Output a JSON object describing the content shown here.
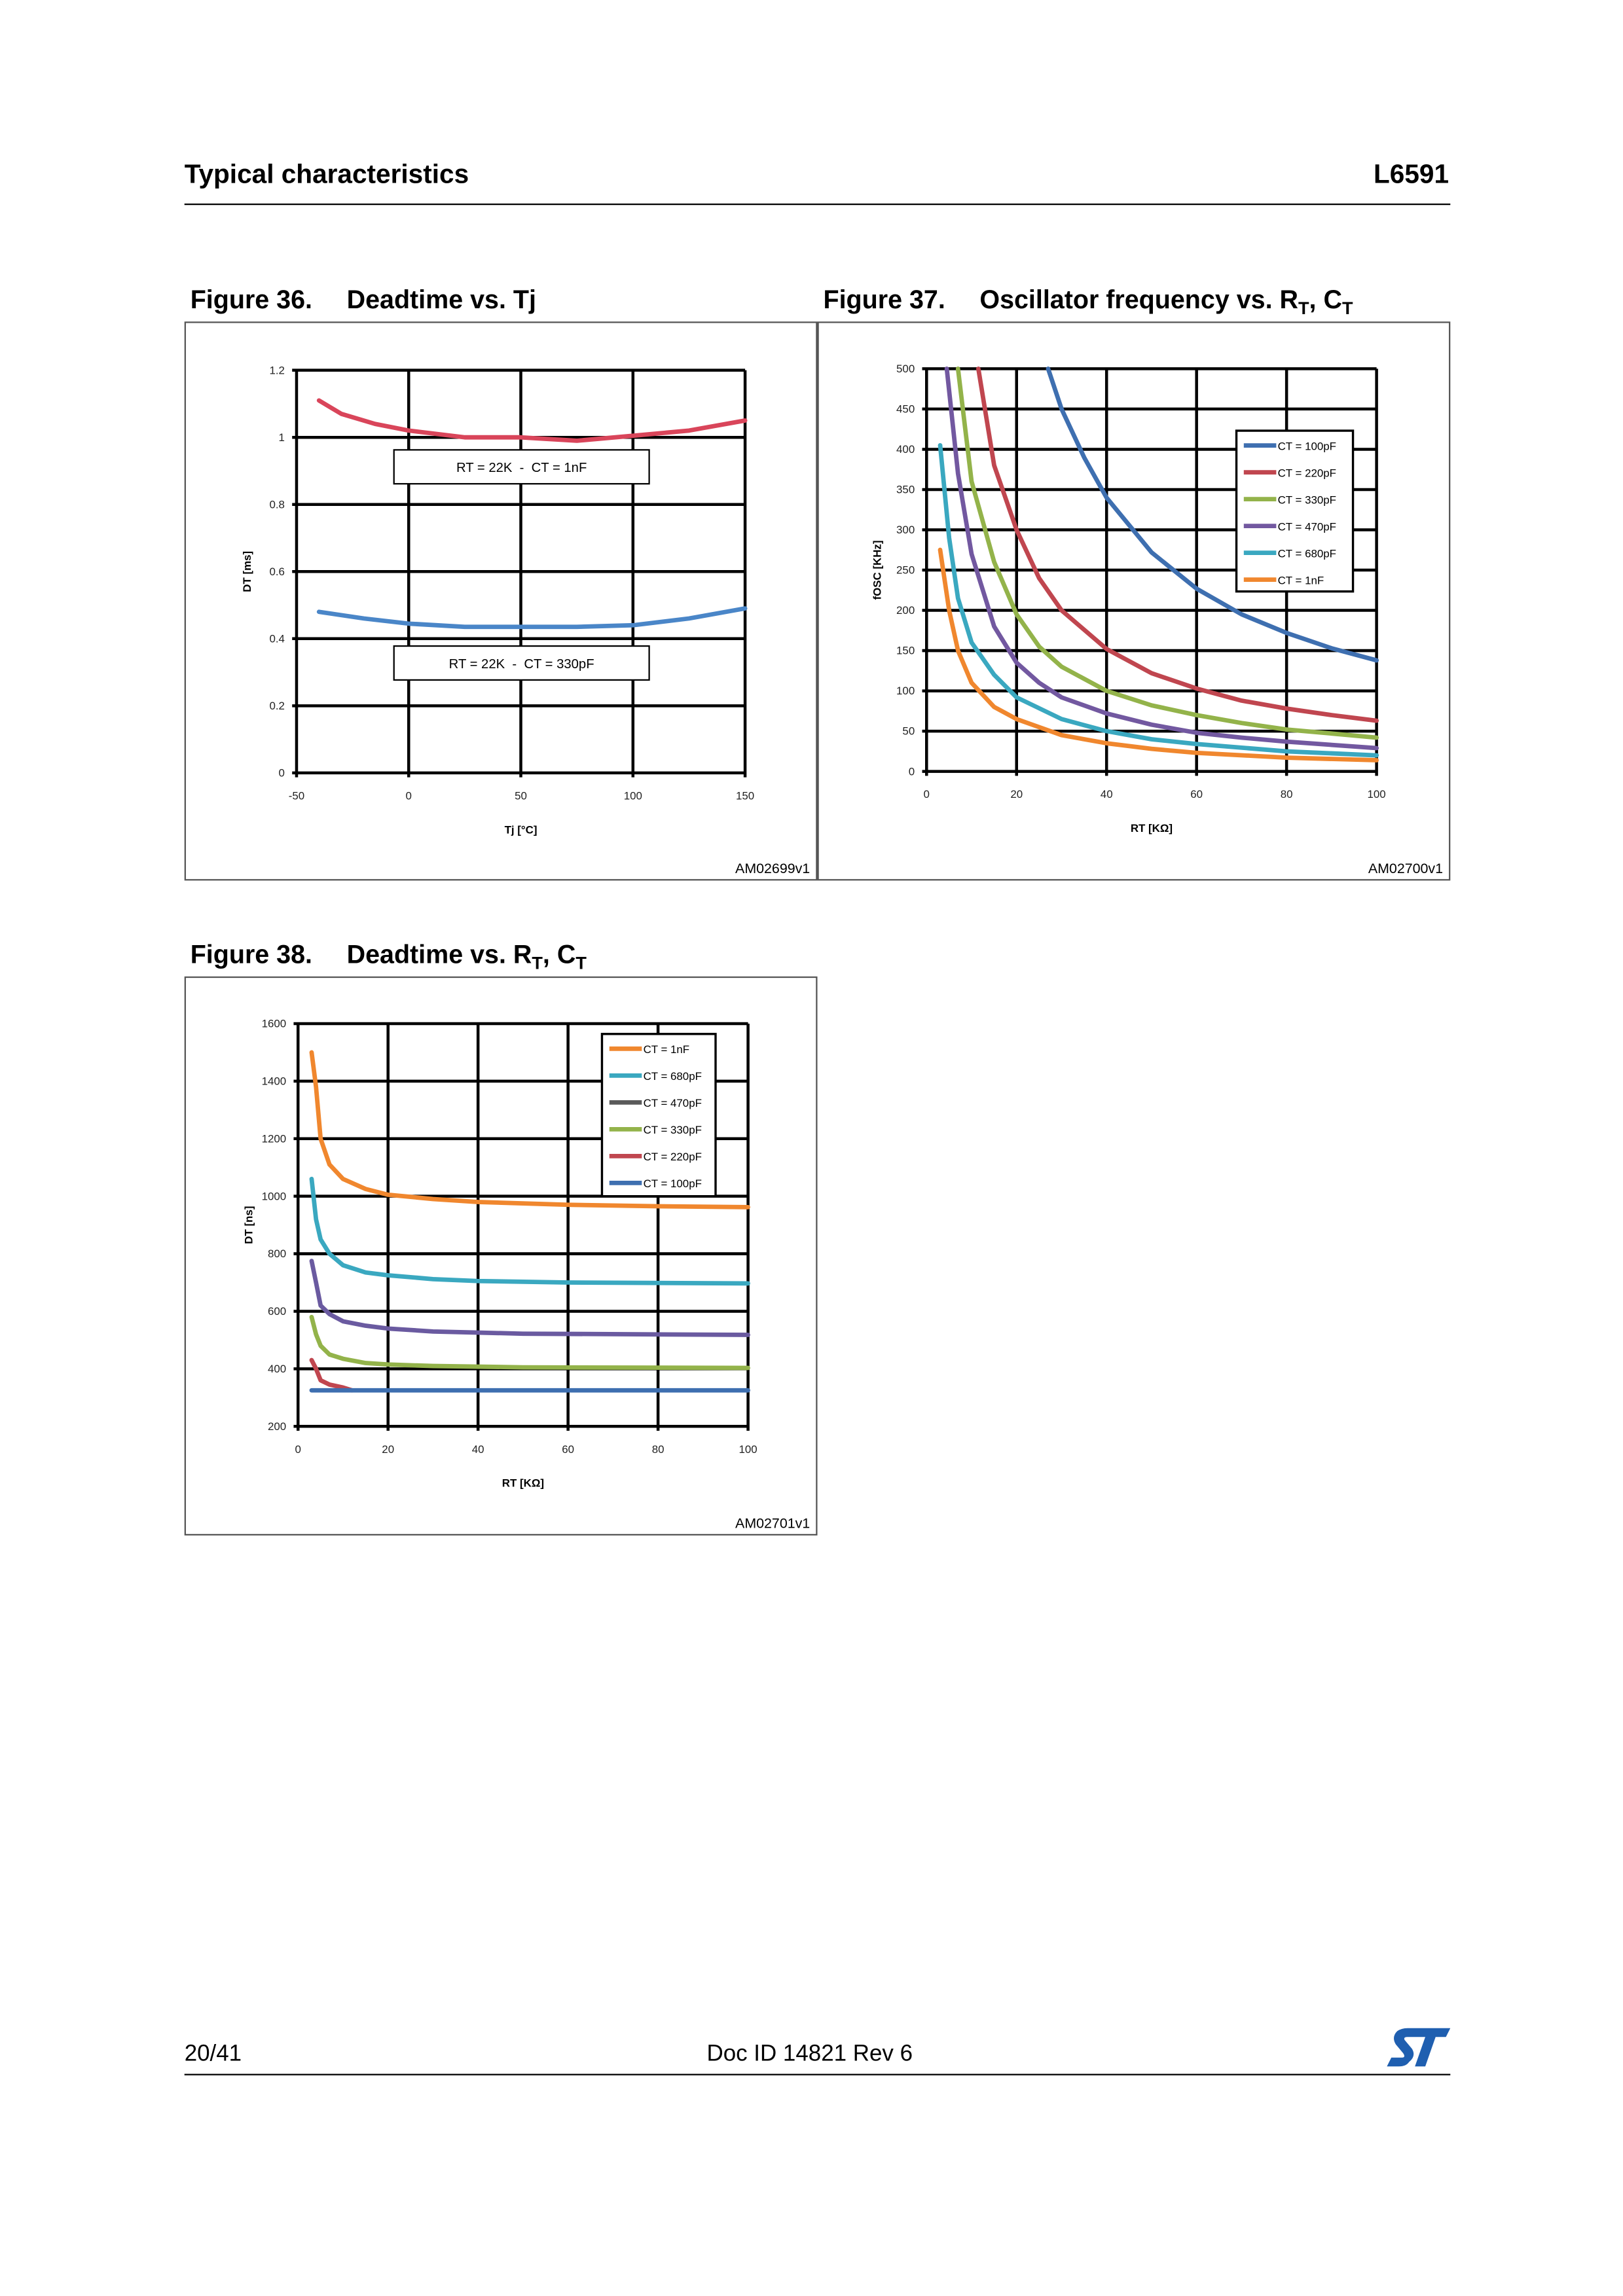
{
  "header": {
    "section": "Typical characteristics",
    "part": "L6591"
  },
  "figures": [
    {
      "num": "Figure 36.",
      "title": "Deadtime vs. Tj",
      "sub1": "",
      "mid": "",
      "sub2": ""
    },
    {
      "num": "Figure 37.",
      "title": "Oscillator frequency vs. R",
      "sub1": "T",
      "mid": ", C",
      "sub2": "T"
    },
    {
      "num": "Figure 38.",
      "title": "Deadtime vs. R",
      "sub1": "T",
      "mid": ", C",
      "sub2": "T"
    }
  ],
  "footer": {
    "page": "20/41",
    "doc": "Doc ID 14821 Rev 6",
    "logo": "ST"
  },
  "colors": {
    "c100": "#3e6fb0",
    "c220": "#c0464f",
    "c330": "#93b34a",
    "c470": "#7258a0",
    "c680": "#3aa8c0",
    "c1n": "#f0872e"
  },
  "chart_data": [
    {
      "type": "line",
      "code": "AM02699v1",
      "xlabel": "Tj [°C]",
      "ylabel": "DT [ms]",
      "xlim": [
        -50,
        150
      ],
      "ylim": [
        0,
        1.2
      ],
      "xticks": [
        -50,
        0,
        50,
        100,
        150
      ],
      "yticks": [
        0,
        0.2,
        0.4,
        0.6,
        0.8,
        1,
        1.2
      ],
      "grid": true,
      "annotations": [
        "RT = 22K  -  CT = 1nF",
        "RT = 22K  -  CT = 330pF"
      ],
      "series": [
        {
          "color": "#d9455a",
          "x": [
            -40,
            -30,
            -15,
            0,
            25,
            50,
            75,
            100,
            125,
            150
          ],
          "y": [
            1.11,
            1.07,
            1.04,
            1.02,
            1.0,
            1.0,
            0.99,
            1.005,
            1.02,
            1.05
          ]
        },
        {
          "color": "#4a86c8",
          "x": [
            -40,
            -20,
            0,
            25,
            50,
            75,
            100,
            125,
            150
          ],
          "y": [
            0.48,
            0.46,
            0.445,
            0.435,
            0.435,
            0.435,
            0.44,
            0.46,
            0.49
          ]
        }
      ]
    },
    {
      "type": "line",
      "code": "AM02700v1",
      "xlabel": "RT [KΩ]",
      "ylabel": "fOSC [KHz]",
      "xlim": [
        0,
        100
      ],
      "ylim": [
        0,
        500
      ],
      "xticks": [
        0,
        20,
        40,
        60,
        80,
        100
      ],
      "yticks": [
        0,
        50,
        100,
        150,
        200,
        250,
        300,
        350,
        400,
        450,
        500
      ],
      "grid": true,
      "legend": "right",
      "series": [
        {
          "name": "CT = 100pF",
          "color": "#3e6fb0",
          "x": [
            27,
            30,
            35,
            40,
            50,
            60,
            70,
            80,
            90,
            100
          ],
          "y": [
            500,
            450,
            390,
            340,
            272,
            227,
            195,
            172,
            153,
            138
          ]
        },
        {
          "name": "CT = 220pF",
          "color": "#c0464f",
          "x": [
            11.5,
            15,
            20,
            25,
            30,
            40,
            50,
            60,
            70,
            80,
            90,
            100
          ],
          "y": [
            500,
            380,
            300,
            240,
            200,
            152,
            122,
            103,
            88,
            78,
            70,
            63
          ]
        },
        {
          "name": "CT = 330pF",
          "color": "#93b34a",
          "x": [
            7,
            10,
            15,
            20,
            25,
            30,
            40,
            50,
            60,
            70,
            80,
            90,
            100
          ],
          "y": [
            500,
            360,
            260,
            195,
            155,
            130,
            100,
            82,
            70,
            60,
            52,
            47,
            42
          ]
        },
        {
          "name": "CT = 470pF",
          "color": "#7258a0",
          "x": [
            4.5,
            7,
            10,
            15,
            20,
            25,
            30,
            40,
            50,
            60,
            70,
            80,
            90,
            100
          ],
          "y": [
            500,
            370,
            270,
            180,
            135,
            110,
            92,
            72,
            58,
            48,
            42,
            37,
            33,
            29
          ]
        },
        {
          "name": "CT = 680pF",
          "color": "#3aa8c0",
          "x": [
            3,
            5,
            7,
            10,
            15,
            20,
            30,
            40,
            50,
            60,
            80,
            100
          ],
          "y": [
            405,
            290,
            215,
            160,
            120,
            92,
            65,
            50,
            40,
            34,
            25,
            20
          ]
        },
        {
          "name": "CT = 1nF",
          "color": "#f0872e",
          "x": [
            3,
            5,
            7,
            10,
            15,
            20,
            30,
            40,
            50,
            60,
            80,
            100
          ],
          "y": [
            275,
            200,
            150,
            110,
            80,
            65,
            45,
            35,
            28,
            23,
            17,
            14
          ]
        }
      ]
    },
    {
      "type": "line",
      "code": "AM02701v1",
      "xlabel": "RT [KΩ]",
      "ylabel": "DT [ns]",
      "xlim": [
        0,
        100
      ],
      "ylim": [
        200,
        1600
      ],
      "xticks": [
        0,
        20,
        40,
        60,
        80,
        100
      ],
      "yticks": [
        200,
        400,
        600,
        800,
        1000,
        1200,
        1400,
        1600
      ],
      "grid": true,
      "legend": "top-right",
      "series": [
        {
          "name": "CT = 1nF",
          "color": "#f0872e",
          "x": [
            3,
            4,
            5,
            7,
            10,
            15,
            20,
            30,
            40,
            60,
            80,
            100
          ],
          "y": [
            1500,
            1380,
            1200,
            1110,
            1060,
            1025,
            1005,
            990,
            980,
            970,
            965,
            962
          ]
        },
        {
          "name": "CT = 680pF",
          "color": "#3aa8c0",
          "x": [
            3,
            4,
            5,
            7,
            10,
            15,
            20,
            30,
            40,
            60,
            100
          ],
          "y": [
            1060,
            920,
            850,
            800,
            760,
            735,
            725,
            712,
            705,
            700,
            697
          ]
        },
        {
          "name": "CT = 470pF",
          "color": "#6a5aa0",
          "legend_color": "#5a5a5a",
          "x": [
            3,
            4,
            5,
            7,
            10,
            15,
            20,
            30,
            50,
            100
          ],
          "y": [
            775,
            700,
            620,
            590,
            565,
            550,
            540,
            530,
            522,
            518
          ]
        },
        {
          "name": "CT = 330pF",
          "color": "#93b34a",
          "x": [
            3,
            4,
            5,
            7,
            10,
            15,
            20,
            30,
            50,
            100
          ],
          "y": [
            580,
            520,
            480,
            450,
            435,
            420,
            415,
            410,
            405,
            403
          ]
        },
        {
          "name": "CT = 220pF",
          "color": "#c0464f",
          "x": [
            3,
            4,
            5,
            7,
            10,
            12
          ],
          "y": [
            430,
            400,
            360,
            345,
            335,
            325
          ]
        },
        {
          "name": "CT = 100pF",
          "color": "#3e6fb0",
          "x": [
            3,
            100
          ],
          "y": [
            325,
            325
          ]
        }
      ]
    }
  ]
}
